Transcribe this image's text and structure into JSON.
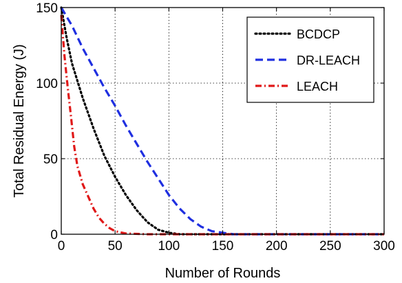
{
  "chart_data": {
    "type": "line",
    "xlabel": "Number of Rounds",
    "ylabel": "Total Residual Energy  (J)",
    "xlim": [
      0,
      300
    ],
    "ylim": [
      0,
      150
    ],
    "xticks": [
      0,
      50,
      100,
      150,
      200,
      250,
      300
    ],
    "yticks": [
      0,
      50,
      100,
      150
    ],
    "grid": true,
    "legend_position": "top-right",
    "series": [
      {
        "name": "BCDCP",
        "color": "#000000",
        "line_style": "dotted",
        "x": [
          0,
          5,
          10,
          20,
          30,
          40,
          50,
          60,
          70,
          80,
          90,
          100,
          110,
          120,
          150,
          200,
          300
        ],
        "y": [
          150,
          130,
          113,
          90,
          70,
          52,
          38,
          26,
          16,
          8,
          3,
          1,
          0,
          0,
          0,
          0,
          0
        ]
      },
      {
        "name": "DR-LEACH",
        "color": "#1f2fe0",
        "line_style": "dashed",
        "x": [
          0,
          10,
          20,
          30,
          40,
          50,
          60,
          70,
          80,
          90,
          100,
          110,
          120,
          130,
          140,
          150,
          160,
          200,
          300
        ],
        "y": [
          150,
          138,
          123,
          110,
          97,
          85,
          72,
          60,
          48,
          37,
          26,
          17,
          10,
          5,
          2,
          1,
          0,
          0,
          0
        ]
      },
      {
        "name": "LEACH",
        "color": "#e01818",
        "line_style": "dash-dot",
        "x": [
          0,
          3,
          6,
          9,
          12,
          15,
          20,
          25,
          30,
          35,
          40,
          45,
          50,
          60,
          80,
          100,
          150,
          200,
          300
        ],
        "y": [
          145,
          118,
          97,
          78,
          58,
          45,
          33,
          25,
          17,
          11,
          7,
          4,
          2,
          0.5,
          0,
          0,
          0,
          0,
          0
        ]
      }
    ]
  }
}
